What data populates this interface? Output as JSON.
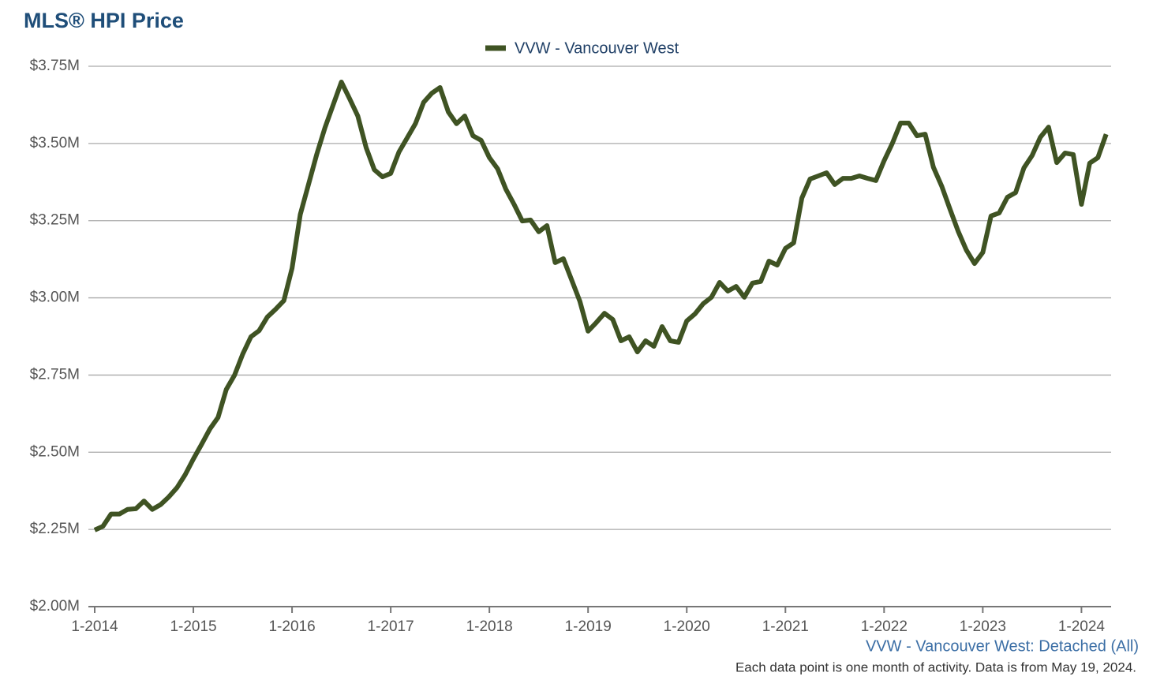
{
  "chart_data": {
    "type": "line",
    "title": "MLS® HPI Price",
    "subtitle": "VVW - Vancouver West: Detached (All)",
    "note": "Each data point is one month of activity. Data is from May 19, 2024.",
    "categories": [
      "1-2014",
      null,
      null,
      null,
      null,
      null,
      null,
      null,
      null,
      null,
      null,
      null,
      "1-2015",
      null,
      null,
      null,
      null,
      null,
      null,
      null,
      null,
      null,
      null,
      null,
      "1-2016",
      null,
      null,
      null,
      null,
      null,
      null,
      null,
      null,
      null,
      null,
      null,
      "1-2017",
      null,
      null,
      null,
      null,
      null,
      null,
      null,
      null,
      null,
      null,
      null,
      "1-2018",
      null,
      null,
      null,
      null,
      null,
      null,
      null,
      null,
      null,
      null,
      null,
      "1-2019",
      null,
      null,
      null,
      null,
      null,
      null,
      null,
      null,
      null,
      null,
      null,
      "1-2020",
      null,
      null,
      null,
      null,
      null,
      null,
      null,
      null,
      null,
      null,
      null,
      "1-2021",
      null,
      null,
      null,
      null,
      null,
      null,
      null,
      null,
      null,
      null,
      null,
      "1-2022",
      null,
      null,
      null,
      null,
      null,
      null,
      null,
      null,
      null,
      null,
      null,
      "1-2023",
      null,
      null,
      null,
      null,
      null,
      null,
      null,
      null,
      null,
      null,
      null,
      "1-2024",
      null,
      null,
      null
    ],
    "series": [
      {
        "name": "VVW - Vancouver West",
        "color": "#3f5323",
        "values": [
          2248000,
          2260000,
          2300000,
          2300000,
          2315000,
          2317000,
          2342000,
          2315000,
          2330000,
          2355000,
          2385000,
          2427000,
          2478000,
          2526000,
          2575000,
          2613000,
          2703000,
          2749000,
          2818000,
          2874000,
          2894000,
          2938000,
          2963000,
          2991000,
          3096000,
          3270000,
          3367000,
          3464000,
          3551000,
          3625000,
          3699000,
          3645000,
          3589000,
          3487000,
          3415000,
          3392000,
          3403000,
          3472000,
          3518000,
          3564000,
          3633000,
          3663000,
          3681000,
          3602000,
          3564000,
          3589000,
          3525000,
          3510000,
          3454000,
          3418000,
          3352000,
          3303000,
          3249000,
          3252000,
          3214000,
          3234000,
          3114000,
          3127000,
          3058000,
          2989000,
          2892000,
          2920000,
          2950000,
          2930000,
          2861000,
          2874000,
          2825000,
          2861000,
          2843000,
          2907000,
          2861000,
          2856000,
          2925000,
          2948000,
          2981000,
          3002000,
          3050000,
          3022000,
          3037000,
          3002000,
          3048000,
          3053000,
          3119000,
          3106000,
          3160000,
          3178000,
          3323000,
          3385000,
          3395000,
          3405000,
          3367000,
          3387000,
          3387000,
          3395000,
          3387000,
          3380000,
          3444000,
          3500000,
          3566000,
          3566000,
          3525000,
          3530000,
          3423000,
          3362000,
          3288000,
          3216000,
          3155000,
          3111000,
          3147000,
          3265000,
          3275000,
          3326000,
          3341000,
          3421000,
          3461000,
          3520000,
          3553000,
          3438000,
          3469000,
          3464000,
          3303000,
          3436000,
          3454000,
          3530000
        ]
      }
    ],
    "ylim": [
      2000000,
      3750000
    ],
    "yticks": [
      {
        "value": 2000000,
        "label": "$2.00M"
      },
      {
        "value": 2250000,
        "label": "$2.25M"
      },
      {
        "value": 2500000,
        "label": "$2.50M"
      },
      {
        "value": 2750000,
        "label": "$2.75M"
      },
      {
        "value": 3000000,
        "label": "$3.00M"
      },
      {
        "value": 3250000,
        "label": "$3.25M"
      },
      {
        "value": 3500000,
        "label": "$3.50M"
      },
      {
        "value": 3750000,
        "label": "$3.75M"
      }
    ],
    "grid": true
  }
}
